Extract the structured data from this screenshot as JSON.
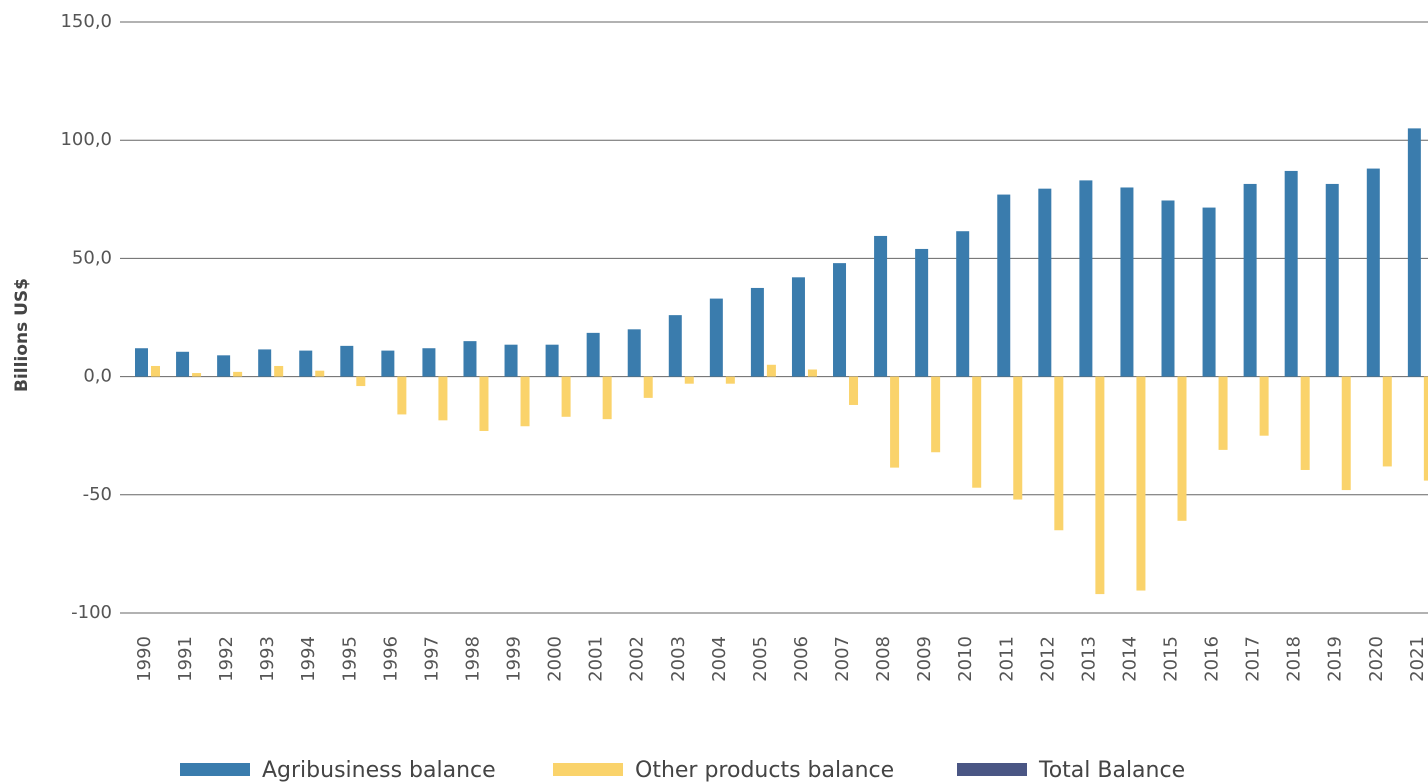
{
  "chart_data": {
    "type": "bar",
    "y_label": "Billions US$",
    "categories": [
      "1990",
      "1991",
      "1992",
      "1993",
      "1994",
      "1995",
      "1996",
      "1997",
      "1998",
      "1999",
      "2000",
      "2001",
      "2002",
      "2003",
      "2004",
      "2005",
      "2006",
      "2007",
      "2008",
      "2009",
      "2010",
      "2011",
      "2012",
      "2013",
      "2014",
      "2015",
      "2016",
      "2017",
      "2018",
      "2019",
      "2020",
      "2021"
    ],
    "series": [
      {
        "name": "Agribusiness balance",
        "color": "#3a7cad",
        "values": [
          12,
          10.5,
          9,
          11.5,
          11,
          13,
          11,
          12,
          15,
          13.5,
          13.5,
          18.5,
          20,
          26,
          33,
          37.5,
          42,
          48,
          59.5,
          54,
          61.5,
          77,
          79.5,
          83,
          80,
          74.5,
          71.5,
          81.5,
          87,
          81.5,
          88,
          105
        ]
      },
      {
        "name": "Other products balance",
        "color": "#fad36b",
        "values": [
          4.5,
          1.5,
          2,
          4.5,
          2.5,
          -4,
          -16,
          -18.5,
          -23,
          -21,
          -17,
          -18,
          -9,
          -3,
          -3,
          5,
          3,
          -12,
          -38.5,
          -32,
          -47,
          -52,
          -65,
          -92,
          -90.5,
          -61,
          -31,
          -25,
          -39.5,
          -48,
          -38,
          -44
        ]
      },
      {
        "name": "Total Balance",
        "color": "#4a5684",
        "values": [
          null,
          null,
          null,
          null,
          null,
          null,
          null,
          null,
          null,
          null,
          null,
          null,
          null,
          null,
          null,
          null,
          null,
          null,
          null,
          null,
          null,
          null,
          null,
          null,
          null,
          null,
          null,
          null,
          null,
          null,
          null,
          null
        ]
      }
    ],
    "ylim": [
      -100,
      150
    ],
    "yticks": [
      -100,
      -50,
      {
        "value": 0,
        "label": "0,0"
      },
      {
        "value": 50,
        "label": "50,0"
      },
      {
        "value": 100,
        "label": "100,0"
      },
      {
        "value": 150,
        "label": "150,0"
      }
    ],
    "grid": true
  }
}
